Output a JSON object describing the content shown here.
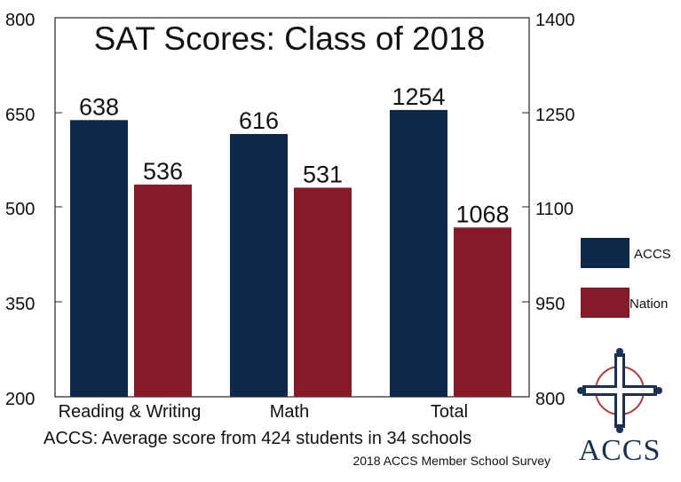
{
  "chart_data": {
    "type": "bar",
    "title": "SAT Scores: Class of 2018",
    "categories": [
      "Reading & Writing",
      "Math",
      "Total"
    ],
    "series": [
      {
        "name": "ACCS",
        "color": "#0f2847",
        "values": [
          638,
          616,
          1254
        ]
      },
      {
        "name": "Nation",
        "color": "#861a28",
        "values": [
          536,
          531,
          1068
        ]
      }
    ],
    "value_labels": {
      "ACCS": [
        "638",
        "616",
        "1254"
      ],
      "Nation": [
        "536",
        "531",
        "1068"
      ]
    },
    "y_left": {
      "range": [
        200,
        800
      ],
      "ticks": [
        "800",
        "650",
        "500",
        "350",
        "200"
      ],
      "applies_to": [
        "Reading & Writing",
        "Math"
      ]
    },
    "y_right": {
      "range": [
        800,
        1400
      ],
      "ticks": [
        "1400",
        "1250",
        "1100",
        "950",
        "800"
      ],
      "applies_to": [
        "Total"
      ]
    },
    "legend_position": "right",
    "grid": false
  },
  "footnote": "ACCS: Average score from 424 students in 34 schools",
  "source": "2018 ACCS Member School Survey",
  "logo": {
    "text": "ACCS",
    "icon": "cross-emblem-icon"
  }
}
